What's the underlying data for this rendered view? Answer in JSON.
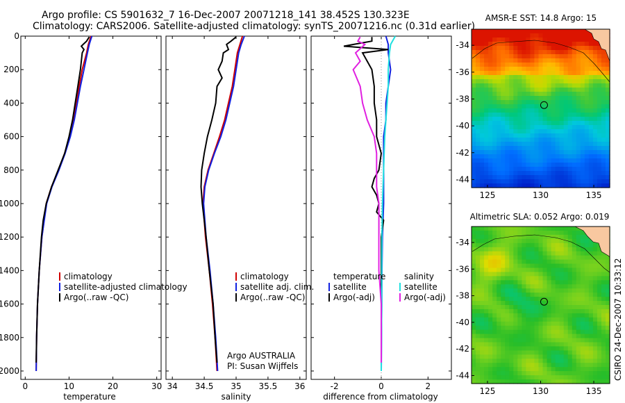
{
  "figure": {
    "title_line1": "Argo profile: CS 5901632_7 16-Dec-2007 20071218_141 38.452S 130.323E",
    "title_line2": "Climatology: CARS2006. Satellite-adjusted climatology: synTS_20071216.nc (0.31d earlier)",
    "credit": "CSIRO 24-Dec-2007 10:33:12",
    "float_owner": "Argo AUSTRALIA",
    "pi": "PI: Susan Wijffels"
  },
  "colors": {
    "climatology": "#d00000",
    "satellite": "#1020e0",
    "argo": "#000000",
    "salinity_satellite": "#20e0e0",
    "salinity_argo": "#e020e0",
    "land": "#f8c8a0"
  },
  "chart_data": [
    {
      "id": "temperature",
      "type": "line",
      "xlabel": "temperature",
      "ylabel": "",
      "xlim": [
        -1,
        31
      ],
      "ylim": [
        2050,
        0
      ],
      "xticks": [
        0,
        10,
        20,
        30
      ],
      "yticks": [
        0,
        200,
        400,
        600,
        800,
        1000,
        1200,
        1400,
        1600,
        1800,
        2000
      ],
      "legend": [
        "climatology",
        "satellite-adjusted climatology",
        "Argo(..raw -QC)"
      ],
      "series": [
        {
          "name": "climatology",
          "color_key": "climatology",
          "depth": [
            0,
            50,
            100,
            200,
            300,
            400,
            500,
            600,
            700,
            800,
            900,
            1000,
            1200,
            1400,
            1600,
            1800,
            2000
          ],
          "values": [
            15.0,
            14.4,
            14.0,
            13.0,
            12.3,
            11.7,
            11.0,
            10.2,
            9.0,
            7.6,
            6.0,
            4.8,
            3.8,
            3.2,
            2.8,
            2.6,
            2.5
          ]
        },
        {
          "name": "satellite",
          "color_key": "satellite",
          "depth": [
            0,
            50,
            100,
            200,
            300,
            400,
            500,
            600,
            700,
            800,
            900,
            1000,
            1200,
            1400,
            1600,
            1800,
            2000
          ],
          "values": [
            15.2,
            14.6,
            14.2,
            13.4,
            12.6,
            11.9,
            11.2,
            10.3,
            9.1,
            7.7,
            6.1,
            4.9,
            3.8,
            3.2,
            2.8,
            2.6,
            2.5
          ]
        },
        {
          "name": "Argo",
          "color_key": "argo",
          "depth": [
            5,
            30,
            50,
            60,
            80,
            100,
            150,
            200,
            300,
            400,
            500,
            600,
            700,
            800,
            900,
            1000,
            1100,
            1200,
            1400,
            1600,
            1800,
            1950
          ],
          "values": [
            14.6,
            14.0,
            13.2,
            12.8,
            13.4,
            13.0,
            12.8,
            12.6,
            12.0,
            11.4,
            10.8,
            10.0,
            9.0,
            7.5,
            6.0,
            4.8,
            4.1,
            3.7,
            3.2,
            2.8,
            2.6,
            2.5
          ]
        }
      ]
    },
    {
      "id": "salinity",
      "type": "line",
      "xlabel": "salinity",
      "ylabel": "",
      "xlim": [
        33.9,
        36.1
      ],
      "ylim": [
        2050,
        0
      ],
      "xticks": [
        34,
        34.5,
        35,
        35.5,
        36
      ],
      "legend": [
        "climatology",
        "satellite adj. clim.",
        "Argo(..raw -QC)"
      ],
      "series": [
        {
          "name": "climatology",
          "color_key": "climatology",
          "depth": [
            0,
            50,
            100,
            200,
            300,
            400,
            500,
            600,
            700,
            800,
            900,
            1000,
            1200,
            1400,
            1600,
            1800,
            2000
          ],
          "values": [
            35.1,
            35.06,
            35.02,
            34.98,
            34.94,
            34.88,
            34.82,
            34.74,
            34.65,
            34.56,
            34.5,
            34.48,
            34.52,
            34.58,
            34.63,
            34.67,
            34.7
          ]
        },
        {
          "name": "satellite",
          "color_key": "satellite",
          "depth": [
            0,
            50,
            100,
            200,
            300,
            400,
            500,
            600,
            700,
            800,
            900,
            1000,
            1200,
            1400,
            1600,
            1800,
            2000
          ],
          "values": [
            35.13,
            35.08,
            35.04,
            35.0,
            34.96,
            34.9,
            34.84,
            34.76,
            34.66,
            34.57,
            34.51,
            34.49,
            34.53,
            34.59,
            34.64,
            34.68,
            34.71
          ]
        },
        {
          "name": "Argo",
          "color_key": "argo",
          "depth": [
            5,
            30,
            50,
            80,
            100,
            150,
            200,
            250,
            300,
            400,
            500,
            600,
            700,
            800,
            900,
            1000,
            1100,
            1200,
            1400,
            1600,
            1800,
            1950
          ],
          "values": [
            35.0,
            34.92,
            34.85,
            34.88,
            34.8,
            34.78,
            34.72,
            34.78,
            34.7,
            34.68,
            34.62,
            34.55,
            34.5,
            34.46,
            34.45,
            34.47,
            34.5,
            34.53,
            34.58,
            34.64,
            34.67,
            34.7
          ]
        }
      ]
    },
    {
      "id": "difference",
      "type": "line",
      "xlabel": "difference from climatology",
      "ylabel": "",
      "xlim": [
        -3,
        3
      ],
      "ylim": [
        2050,
        0
      ],
      "xticks": [
        -2,
        0,
        2
      ],
      "legend_temperature_title": "temperature",
      "legend_salinity_title": "salinity",
      "legend_temperature": [
        "satellite",
        "Argo(-adj)"
      ],
      "legend_salinity": [
        "satellite",
        "Argo(-adj)"
      ],
      "series": [
        {
          "name": "temperature satellite",
          "color_key": "satellite",
          "depth": [
            0,
            50,
            100,
            200,
            300,
            400,
            500,
            600,
            700,
            800,
            1000,
            1200,
            1400,
            1600,
            1800,
            2000
          ],
          "values": [
            0.2,
            0.3,
            0.3,
            0.4,
            0.3,
            0.2,
            0.2,
            0.1,
            0.1,
            0.1,
            0.1,
            0.05,
            0.03,
            0.02,
            0.01,
            0.0
          ]
        },
        {
          "name": "temperature Argo",
          "color_key": "argo",
          "depth": [
            5,
            30,
            50,
            60,
            80,
            100,
            150,
            200,
            300,
            400,
            500,
            600,
            700,
            800,
            850,
            900,
            950,
            1000,
            1050,
            1100,
            1200,
            1400,
            1600,
            1800,
            1950
          ],
          "values": [
            -0.4,
            -0.4,
            -1.2,
            -1.6,
            0.3,
            -0.8,
            -0.6,
            -0.4,
            -0.3,
            -0.3,
            -0.2,
            -0.2,
            0.0,
            -0.1,
            -0.3,
            -0.4,
            -0.2,
            -0.1,
            -0.2,
            0.1,
            0.0,
            0.0,
            0.0,
            0.0,
            0.0
          ]
        },
        {
          "name": "salinity satellite",
          "color_key": "salinity_satellite",
          "depth": [
            0,
            50,
            100,
            200,
            300,
            400,
            500,
            600,
            800,
            1000,
            1200,
            1400,
            1600,
            1800,
            2000
          ],
          "values": [
            0.6,
            0.4,
            0.35,
            0.3,
            0.3,
            0.25,
            0.2,
            0.15,
            0.1,
            0.05,
            0.03,
            0.02,
            0.02,
            0.01,
            0.0
          ]
        },
        {
          "name": "salinity Argo",
          "color_key": "salinity_argo",
          "depth": [
            5,
            30,
            50,
            100,
            150,
            200,
            300,
            400,
            500,
            600,
            700,
            800,
            900,
            1000,
            1200,
            1400,
            1600,
            1800,
            1950
          ],
          "values": [
            -0.9,
            -1.0,
            -0.7,
            -1.1,
            -0.9,
            -1.2,
            -0.9,
            -0.8,
            -0.6,
            -0.3,
            -0.2,
            -0.2,
            -0.2,
            -0.1,
            -0.1,
            -0.1,
            0.0,
            0.0,
            0.0
          ]
        }
      ]
    },
    {
      "id": "sst_map",
      "type": "heatmap",
      "title": "AMSR-E SST: 14.8 Argo: 15",
      "xticks": [
        125,
        130,
        135
      ],
      "yticks": [
        -34,
        -36,
        -38,
        -40,
        -42,
        -44
      ],
      "xlim": [
        123.5,
        136.5
      ],
      "ylim": [
        -44.6,
        -32.8
      ],
      "float_lon": 130.323,
      "float_lat": -38.452,
      "field": "sst",
      "value_range": [
        10,
        20
      ]
    },
    {
      "id": "sla_map",
      "type": "heatmap",
      "title": "Altimetric SLA: 0.052 Argo: 0.019",
      "xticks": [
        125,
        130,
        135
      ],
      "yticks": [
        -34,
        -36,
        -38,
        -40,
        -42,
        -44
      ],
      "xlim": [
        123.5,
        136.5
      ],
      "ylim": [
        -44.6,
        -32.8
      ],
      "float_lon": 130.323,
      "float_lat": -38.452,
      "field": "sla",
      "value_range": [
        -0.3,
        0.3
      ]
    }
  ]
}
